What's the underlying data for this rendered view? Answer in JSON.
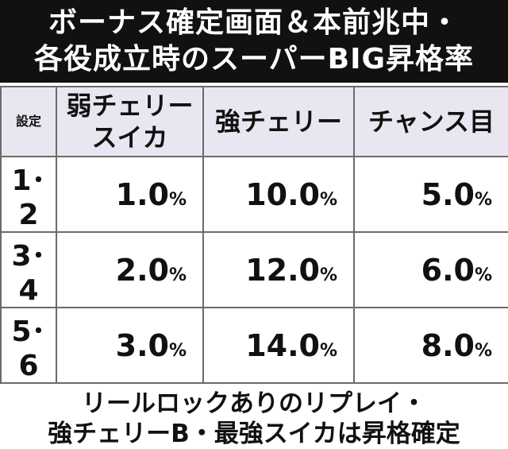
{
  "header": {
    "title": [
      "ボーナス確定画面＆本前兆中・",
      "各役成立時のスーパーBIG昇格率"
    ]
  },
  "table": {
    "columns": [
      "設定",
      "弱チェリー\nスイカ",
      "強チェリー",
      "チャンス目"
    ],
    "rows": [
      [
        "1･2",
        {
          "value": "1.0",
          "unit": "%"
        },
        {
          "value": "10.0",
          "unit": "%"
        },
        {
          "value": "5.0",
          "unit": "%"
        }
      ],
      [
        "3･4",
        {
          "value": "2.0",
          "unit": "%"
        },
        {
          "value": "12.0",
          "unit": "%"
        },
        {
          "value": "6.0",
          "unit": "%"
        }
      ],
      [
        "5･6",
        {
          "value": "3.0",
          "unit": "%"
        },
        {
          "value": "14.0",
          "unit": "%"
        },
        {
          "value": "8.0",
          "unit": "%"
        }
      ]
    ]
  },
  "footer": {
    "notes": [
      "リールロックありのリプレイ・",
      "強チェリーB・最強スイカは昇格確定"
    ]
  }
}
